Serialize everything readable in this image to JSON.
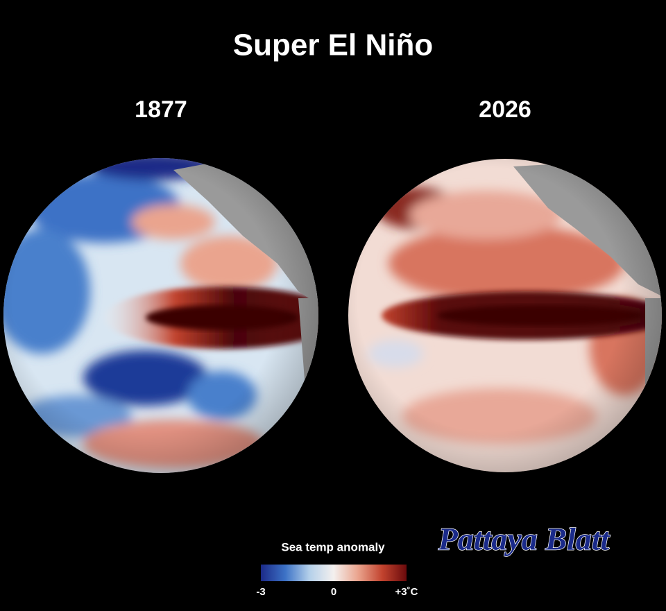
{
  "title": "Super El Niño",
  "panels": [
    {
      "label": "1877"
    },
    {
      "label": "2026"
    }
  ],
  "legend": {
    "title": "Sea temp anomaly",
    "range": [
      -3,
      3
    ],
    "ticks": [
      -3,
      0,
      {
        "value": 3,
        "label": "+3˚C"
      }
    ],
    "colors": [
      "#1c2a88",
      "#3c72c6",
      "#b4d0ea",
      "#f4f0ee",
      "#eaa48e",
      "#c2432e",
      "#6a0a0c"
    ]
  },
  "watermark": "Pattaya Blatt"
}
